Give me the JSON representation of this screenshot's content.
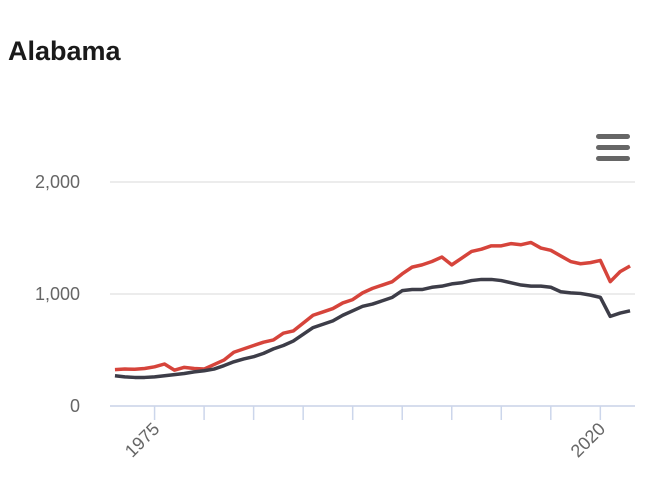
{
  "chart_data": {
    "type": "line",
    "title": "Alabama",
    "x": [
      1971,
      1972,
      1973,
      1974,
      1975,
      1976,
      1977,
      1978,
      1979,
      1980,
      1981,
      1982,
      1983,
      1984,
      1985,
      1986,
      1987,
      1988,
      1989,
      1990,
      1991,
      1992,
      1993,
      1994,
      1995,
      1996,
      1997,
      1998,
      1999,
      2000,
      2001,
      2002,
      2003,
      2004,
      2005,
      2006,
      2007,
      2008,
      2009,
      2010,
      2011,
      2012,
      2013,
      2014,
      2015,
      2016,
      2017,
      2018,
      2019,
      2020,
      2021,
      2022,
      2023
    ],
    "series": [
      {
        "color": "#d6443b",
        "values": [
          325,
          330,
          328,
          335,
          350,
          375,
          320,
          345,
          335,
          330,
          370,
          410,
          480,
          510,
          540,
          570,
          590,
          650,
          670,
          740,
          810,
          840,
          870,
          920,
          950,
          1010,
          1050,
          1080,
          1110,
          1180,
          1240,
          1260,
          1290,
          1330,
          1260,
          1320,
          1380,
          1400,
          1430,
          1430,
          1450,
          1440,
          1460,
          1410,
          1390,
          1340,
          1290,
          1270,
          1280,
          1300,
          1110,
          1200,
          1250
        ]
      },
      {
        "color": "#3d3d48",
        "values": [
          270,
          260,
          255,
          255,
          260,
          270,
          280,
          290,
          305,
          315,
          330,
          360,
          395,
          420,
          440,
          470,
          510,
          540,
          580,
          640,
          700,
          730,
          760,
          810,
          850,
          890,
          910,
          940,
          970,
          1030,
          1040,
          1040,
          1060,
          1070,
          1090,
          1100,
          1120,
          1130,
          1130,
          1120,
          1100,
          1080,
          1070,
          1070,
          1060,
          1020,
          1010,
          1005,
          990,
          970,
          800,
          830,
          850
        ]
      }
    ],
    "xlim": [
      1970.5,
      2023.5
    ],
    "xticks": [
      1975,
      2020
    ],
    "minor_xticks": [
      1980,
      1985,
      1990,
      1995,
      2000,
      2005,
      2010,
      2015
    ],
    "ylim": [
      0,
      2000
    ],
    "yticks": [
      0,
      {
        "value": 1000,
        "label": "1,000"
      },
      {
        "value": 2000,
        "label": "2,000"
      }
    ],
    "grid": true
  }
}
